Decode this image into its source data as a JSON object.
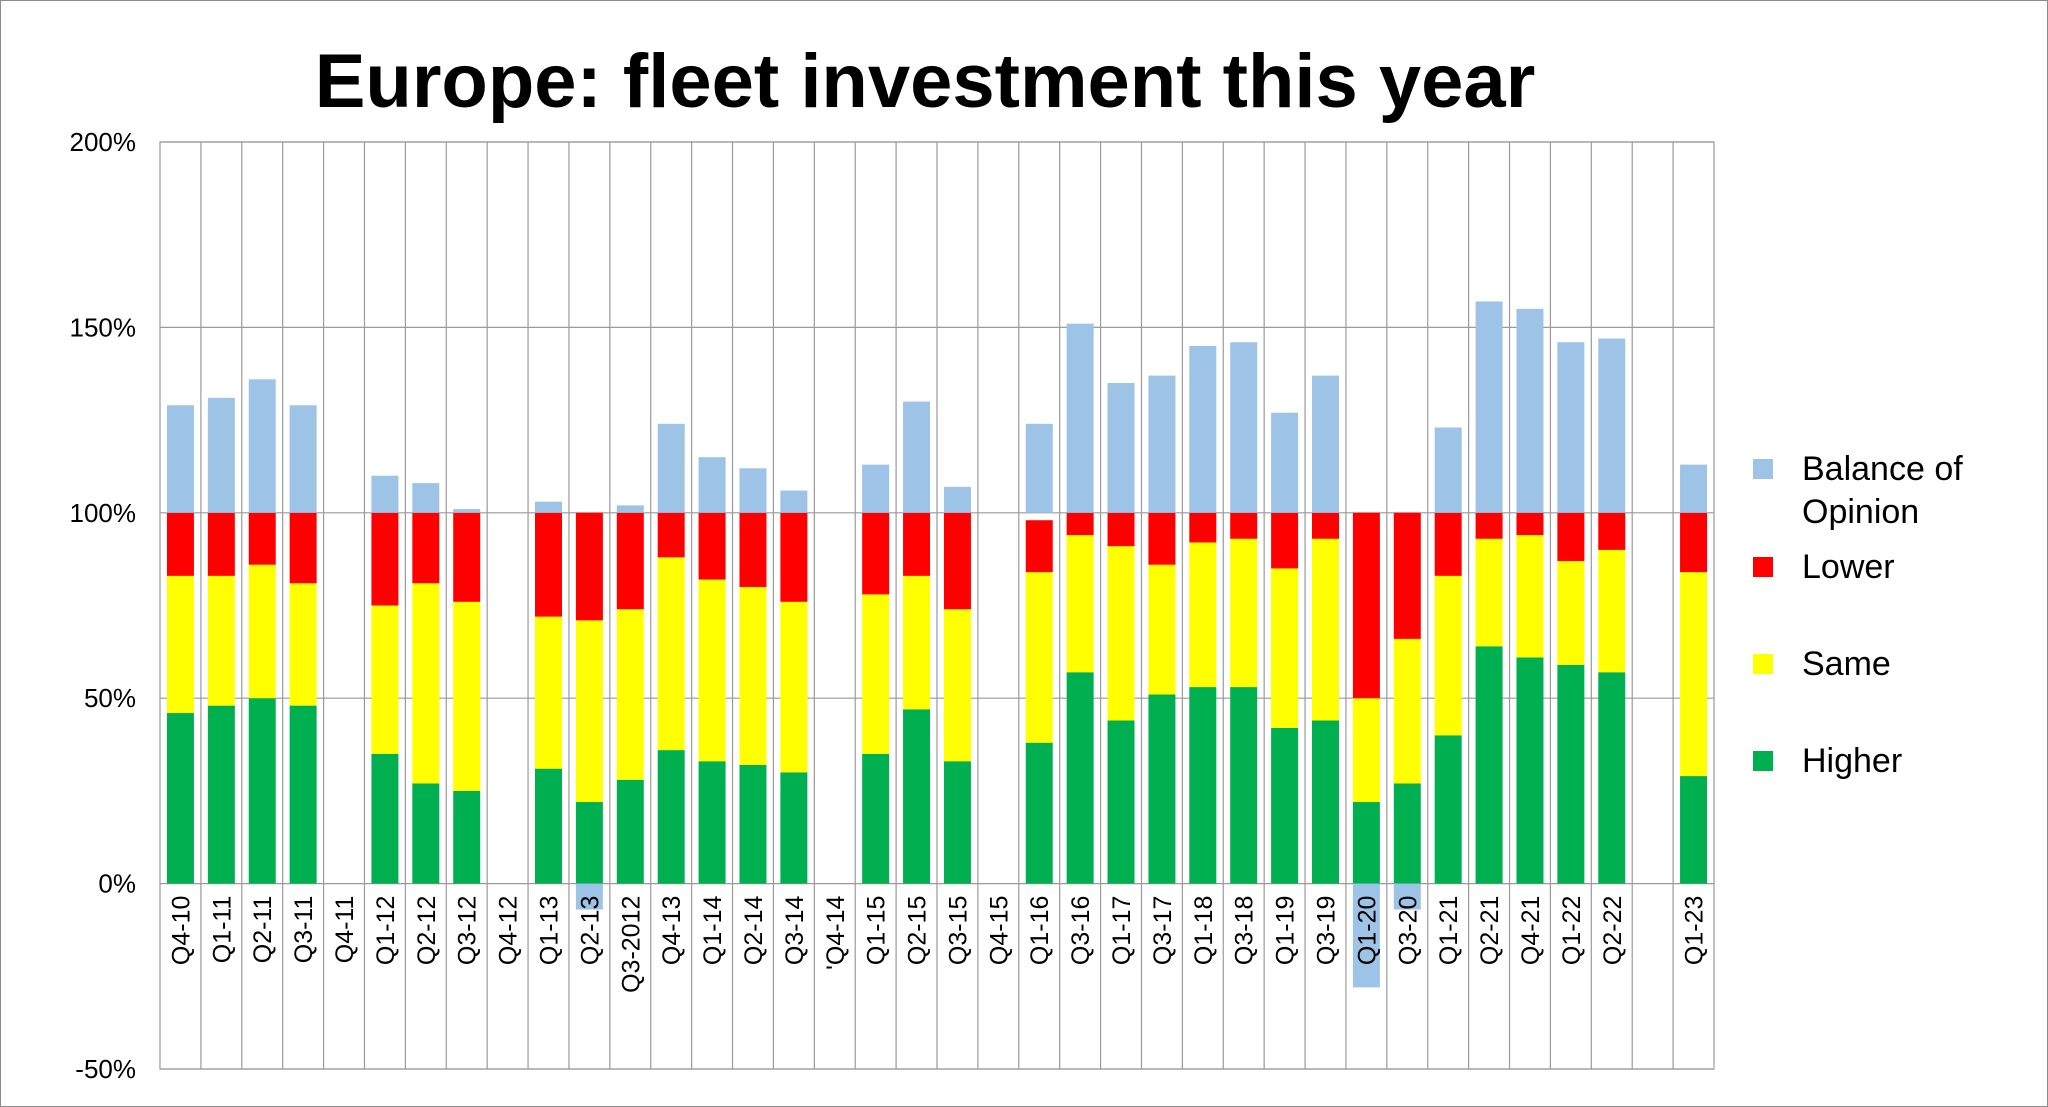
{
  "chart_data": {
    "type": "bar",
    "stacked": true,
    "title": "Europe: fleet investment this year",
    "xlabel": "",
    "ylabel": "",
    "ylim": [
      -50,
      200
    ],
    "yticks": [
      -50,
      0,
      50,
      100,
      150,
      200
    ],
    "ytick_labels": [
      "-50%",
      "0%",
      "50%",
      "100%",
      "150%",
      "200%"
    ],
    "grid": true,
    "legend_position": "right",
    "categories": [
      "Q4-10",
      "Q1-11",
      "Q2-11",
      "Q3-11",
      "Q4-11",
      "Q1-12",
      "Q2-12",
      "Q3-12",
      "Q4-12",
      "Q1-13",
      "Q2-13",
      "Q3-2012",
      "Q4-13",
      "Q1-14",
      "Q2-14",
      "Q3-14",
      "'Q4-14",
      "Q1-15",
      "Q2-15",
      "Q3-15",
      "Q4-15",
      "Q1-16",
      "Q3-16",
      "Q1-17",
      "Q3-17",
      "Q1-18",
      "Q3-18",
      "Q1-19",
      "Q3-19",
      "Q1-20",
      "Q3-20",
      "Q1-21",
      "Q2-21",
      "Q4-21",
      "Q1-22",
      "Q2-22",
      "",
      "Q1-23"
    ],
    "series": [
      {
        "name": "Higher",
        "color": "#00b050",
        "values": [
          46,
          48,
          50,
          48,
          null,
          35,
          27,
          25,
          null,
          31,
          22,
          28,
          36,
          33,
          32,
          30,
          null,
          35,
          47,
          33,
          null,
          38,
          57,
          44,
          51,
          53,
          53,
          42,
          44,
          22,
          27,
          40,
          64,
          61,
          59,
          57,
          null,
          29
        ]
      },
      {
        "name": "Same",
        "color": "#ffff00",
        "values": [
          37,
          35,
          36,
          33,
          null,
          40,
          54,
          51,
          null,
          41,
          49,
          46,
          52,
          49,
          48,
          46,
          null,
          43,
          36,
          41,
          null,
          46,
          37,
          47,
          35,
          39,
          40,
          43,
          49,
          28,
          39,
          43,
          29,
          33,
          28,
          33,
          null,
          55
        ]
      },
      {
        "name": "Lower",
        "color": "#ff0000",
        "values": [
          17,
          17,
          14,
          19,
          null,
          25,
          19,
          24,
          null,
          28,
          29,
          26,
          12,
          18,
          20,
          24,
          null,
          22,
          17,
          26,
          null,
          14,
          6,
          9,
          14,
          8,
          7,
          15,
          7,
          50,
          34,
          17,
          7,
          6,
          13,
          10,
          null,
          16
        ]
      },
      {
        "name": "Balance of Opinion",
        "color": "#9dc3e6",
        "values": [
          29,
          31,
          36,
          29,
          null,
          10,
          8,
          1,
          null,
          3,
          -7,
          2,
          24,
          15,
          12,
          6,
          null,
          13,
          30,
          7,
          null,
          24,
          51,
          35,
          37,
          45,
          46,
          27,
          37,
          -28,
          -7,
          23,
          57,
          55,
          46,
          47,
          null,
          13
        ]
      }
    ]
  }
}
